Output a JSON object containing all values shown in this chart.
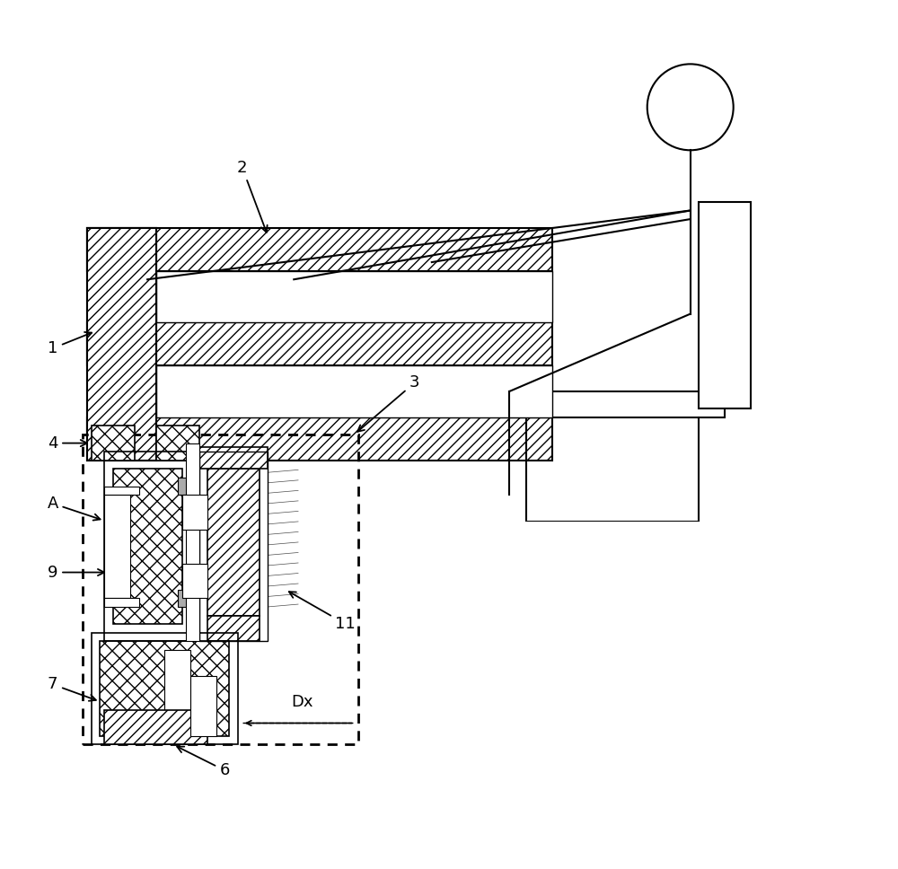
{
  "bg_color": "#ffffff",
  "lc": "#000000",
  "lw": 1.5,
  "fs": 13,
  "figsize": [
    10.0,
    9.68
  ],
  "dpi": 100
}
